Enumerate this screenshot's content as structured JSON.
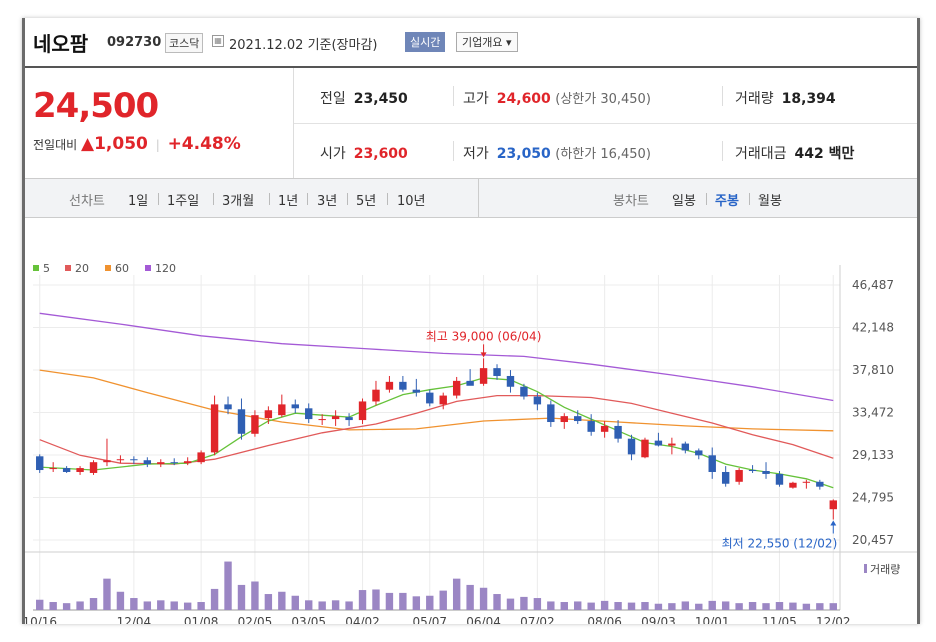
{
  "header": {
    "stock_name": "네오팜",
    "stock_code": "092730",
    "market": "코스닥",
    "date_text": "2021.12.02 기준(장마감)",
    "realtime_button": "실시간",
    "overview_button": "기업개요 ▾"
  },
  "price": {
    "current": "24,500",
    "change_label": "전일대비",
    "change_arrow": "▲",
    "change_amount": "1,050",
    "change_percent": "+4.48%"
  },
  "stats": {
    "prev_close_label": "전일",
    "prev_close": "23,450",
    "high_label": "고가",
    "high": "24,600",
    "upper_limit": "(상한가 30,450)",
    "volume_label": "거래량",
    "volume": "18,394",
    "open_label": "시가",
    "open": "23,600",
    "low_label": "저가",
    "low": "23,050",
    "lower_limit": "(하한가 16,450)",
    "amount_label": "거래대금",
    "amount": "442 백만"
  },
  "periods": {
    "line_label": "선차트",
    "line_items": [
      "1일",
      "1주일",
      "3개월",
      "1년",
      "3년",
      "5년",
      "10년"
    ],
    "candle_label": "봉차트",
    "candle_items": [
      "일봉",
      "주봉",
      "월봉"
    ],
    "active_candle": "주봉"
  },
  "chart_data": {
    "type": "candlestick",
    "legend": [
      {
        "name": "5",
        "color": "#66c23a"
      },
      {
        "name": "20",
        "color": "#e15a5a"
      },
      {
        "name": "60",
        "color": "#f0922f"
      },
      {
        "name": "120",
        "color": "#a45ad6"
      }
    ],
    "y_ticks": [
      "46,487",
      "42,148",
      "37,810",
      "33,472",
      "29,133",
      "24,795",
      "20,457"
    ],
    "ylim": [
      20457,
      46487
    ],
    "x_ticks": [
      "10/16",
      "12/04",
      "01/08",
      "02/05",
      "03/05",
      "04/02",
      "05/07",
      "06/04",
      "07/02",
      "08/06",
      "09/03",
      "10/01",
      "11/05",
      "12/02"
    ],
    "x_tick_index": [
      0,
      7,
      12,
      16,
      20,
      24,
      29,
      33,
      37,
      42,
      46,
      50,
      55,
      59
    ],
    "up_color": "#e0252a",
    "down_color": "#2f5fb3",
    "candles": [
      [
        29000,
        29200,
        27300,
        27600
      ],
      [
        27700,
        28400,
        27400,
        27800
      ],
      [
        27800,
        28000,
        27300,
        27400
      ],
      [
        27400,
        28000,
        27100,
        27800
      ],
      [
        27300,
        28600,
        27100,
        28400
      ],
      [
        28400,
        30800,
        28000,
        28600
      ],
      [
        28600,
        29100,
        28300,
        28700
      ],
      [
        28700,
        29000,
        28200,
        28600
      ],
      [
        28600,
        28900,
        27900,
        28200
      ],
      [
        28200,
        28700,
        27900,
        28400
      ],
      [
        28400,
        28800,
        28100,
        28300
      ],
      [
        28300,
        28900,
        28100,
        28500
      ],
      [
        28400,
        29600,
        28200,
        29400
      ],
      [
        29400,
        35200,
        29100,
        34300
      ],
      [
        34300,
        35100,
        33300,
        33800
      ],
      [
        33800,
        34900,
        30700,
        31300
      ],
      [
        31300,
        33700,
        31000,
        33200
      ],
      [
        32900,
        34100,
        32300,
        33700
      ],
      [
        33200,
        35300,
        33000,
        34300
      ],
      [
        34300,
        34800,
        33400,
        33900
      ],
      [
        33900,
        34400,
        32400,
        32800
      ],
      [
        32800,
        33300,
        32200,
        32800
      ],
      [
        32800,
        33700,
        32100,
        33100
      ],
      [
        33000,
        33400,
        32100,
        32700
      ],
      [
        32700,
        34900,
        32300,
        34600
      ],
      [
        34600,
        36700,
        34200,
        35800
      ],
      [
        35800,
        37200,
        35500,
        36600
      ],
      [
        36600,
        37200,
        35600,
        35800
      ],
      [
        35800,
        36900,
        35100,
        35500
      ],
      [
        35500,
        35800,
        34100,
        34400
      ],
      [
        34300,
        35500,
        33800,
        35200
      ],
      [
        35200,
        37100,
        34900,
        36700
      ],
      [
        36700,
        37900,
        36300,
        36200
      ],
      [
        36400,
        39000,
        36200,
        38000
      ],
      [
        38000,
        38400,
        36800,
        37200
      ],
      [
        37200,
        37800,
        35500,
        36100
      ],
      [
        36100,
        36400,
        34800,
        35100
      ],
      [
        35100,
        35500,
        33700,
        34300
      ],
      [
        34300,
        34700,
        32000,
        32500
      ],
      [
        32500,
        33400,
        31800,
        33100
      ],
      [
        33100,
        33700,
        32300,
        32600
      ],
      [
        32600,
        33300,
        31100,
        31500
      ],
      [
        31500,
        32600,
        30900,
        32100
      ],
      [
        32100,
        32700,
        30400,
        30800
      ],
      [
        30800,
        31200,
        28600,
        29200
      ],
      [
        28900,
        30900,
        28800,
        30700
      ],
      [
        30600,
        31400,
        30000,
        30100
      ],
      [
        30100,
        30900,
        29200,
        30300
      ],
      [
        30300,
        30500,
        29300,
        29600
      ],
      [
        29600,
        29800,
        28700,
        29100
      ],
      [
        29100,
        29900,
        26700,
        27400
      ],
      [
        27400,
        28000,
        25900,
        26200
      ],
      [
        26400,
        27800,
        26100,
        27600
      ],
      [
        27600,
        28100,
        27300,
        27500
      ],
      [
        27500,
        28400,
        26700,
        27200
      ],
      [
        27200,
        27500,
        25900,
        26100
      ],
      [
        25800,
        26400,
        25700,
        26300
      ],
      [
        26300,
        26600,
        25700,
        26400
      ],
      [
        26400,
        26600,
        25600,
        25900
      ],
      [
        23600,
        24600,
        22550,
        24500
      ]
    ],
    "ma_5": [
      [
        0,
        27900
      ],
      [
        4,
        27600
      ],
      [
        8,
        28200
      ],
      [
        11,
        28300
      ],
      [
        13,
        29200
      ],
      [
        15,
        31000
      ],
      [
        17,
        32600
      ],
      [
        19,
        33400
      ],
      [
        21,
        33200
      ],
      [
        23,
        33000
      ],
      [
        25,
        34200
      ],
      [
        27,
        35300
      ],
      [
        29,
        35800
      ],
      [
        31,
        36200
      ],
      [
        33,
        37000
      ],
      [
        35,
        36800
      ],
      [
        37,
        35600
      ],
      [
        39,
        34000
      ],
      [
        41,
        32800
      ],
      [
        43,
        31600
      ],
      [
        45,
        30400
      ],
      [
        47,
        30000
      ],
      [
        49,
        29300
      ],
      [
        51,
        28200
      ],
      [
        53,
        27600
      ],
      [
        55,
        27200
      ],
      [
        57,
        26700
      ],
      [
        59,
        25800
      ]
    ],
    "ma_20": [
      [
        0,
        30700
      ],
      [
        3,
        29100
      ],
      [
        6,
        28300
      ],
      [
        10,
        28200
      ],
      [
        13,
        28700
      ],
      [
        17,
        30100
      ],
      [
        21,
        31400
      ],
      [
        25,
        32300
      ],
      [
        28,
        33400
      ],
      [
        31,
        34600
      ],
      [
        34,
        35200
      ],
      [
        37,
        35200
      ],
      [
        41,
        35000
      ],
      [
        44,
        34400
      ],
      [
        47,
        33400
      ],
      [
        50,
        32400
      ],
      [
        53,
        31200
      ],
      [
        56,
        30200
      ],
      [
        59,
        28800
      ]
    ],
    "ma_60": [
      [
        0,
        37800
      ],
      [
        4,
        37000
      ],
      [
        8,
        35500
      ],
      [
        13,
        33700
      ],
      [
        18,
        32500
      ],
      [
        23,
        31700
      ],
      [
        28,
        31800
      ],
      [
        33,
        32600
      ],
      [
        38,
        32900
      ],
      [
        43,
        32500
      ],
      [
        48,
        32100
      ],
      [
        53,
        31800
      ],
      [
        59,
        31600
      ]
    ],
    "ma_120": [
      [
        0,
        43600
      ],
      [
        6,
        42500
      ],
      [
        12,
        41300
      ],
      [
        18,
        40500
      ],
      [
        24,
        40000
      ],
      [
        30,
        39500
      ],
      [
        36,
        39200
      ],
      [
        41,
        38400
      ],
      [
        47,
        37300
      ],
      [
        53,
        36100
      ],
      [
        59,
        34700
      ]
    ],
    "annotation_high": "최고 39,000 (06/04)",
    "annotation_low": "최저 22,550 (12/02)",
    "high_index": 33,
    "low_index": 59,
    "volume_label": "거래량",
    "volume_color": "#9b86c4",
    "volumes": [
      0.18,
      0.14,
      0.12,
      0.15,
      0.21,
      0.55,
      0.32,
      0.21,
      0.15,
      0.17,
      0.15,
      0.13,
      0.14,
      0.37,
      0.85,
      0.44,
      0.5,
      0.28,
      0.32,
      0.25,
      0.17,
      0.15,
      0.17,
      0.15,
      0.35,
      0.36,
      0.3,
      0.3,
      0.24,
      0.25,
      0.34,
      0.55,
      0.44,
      0.39,
      0.28,
      0.2,
      0.23,
      0.21,
      0.15,
      0.14,
      0.15,
      0.13,
      0.16,
      0.14,
      0.13,
      0.14,
      0.11,
      0.12,
      0.15,
      0.11,
      0.16,
      0.15,
      0.12,
      0.14,
      0.12,
      0.14,
      0.13,
      0.11,
      0.12,
      0.12
    ]
  }
}
